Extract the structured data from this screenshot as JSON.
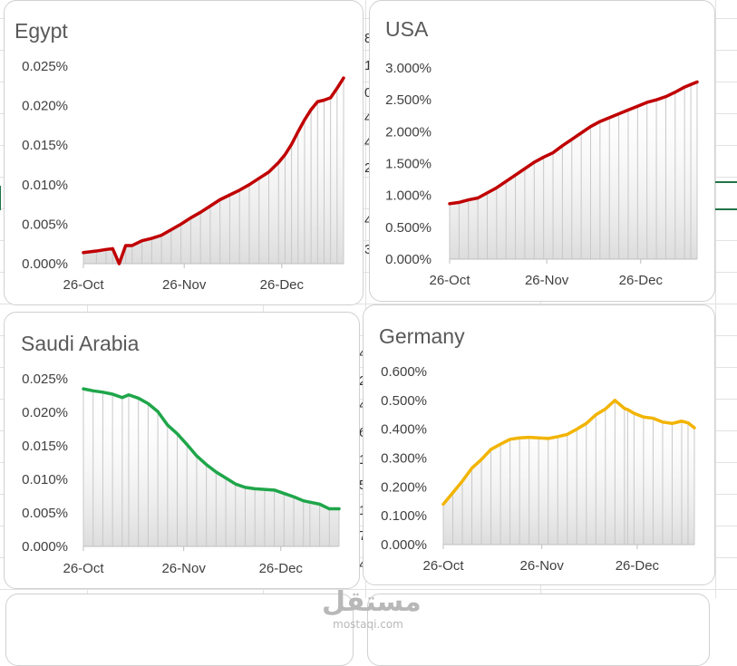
{
  "background": {
    "fragments": [
      "8",
      "1",
      "0",
      "4",
      "4",
      "2",
      "4",
      "3",
      "4",
      "2",
      "4",
      "6",
      "1",
      "5",
      "1",
      "7",
      "4"
    ]
  },
  "watermark": {
    "arabic": "مستقل",
    "latin": "mostaqi.com"
  },
  "chart_data": [
    {
      "type": "area",
      "title": "Egypt",
      "color": "#c00000",
      "x_ticks": [
        "26-Oct",
        "26-Nov",
        "26-Dec"
      ],
      "x_tick_days": [
        0,
        31,
        61
      ],
      "x_range": [
        0,
        80
      ],
      "y_ticks": [
        "0.000%",
        "0.005%",
        "0.010%",
        "0.015%",
        "0.020%",
        "0.025%"
      ],
      "ylim": [
        0,
        0.025
      ],
      "y_unit": "%",
      "series": [
        {
          "x": [
            0,
            4,
            7,
            9,
            11,
            13,
            15,
            18,
            21,
            24,
            27,
            30,
            33,
            36,
            39,
            42,
            45,
            48,
            51,
            54,
            57,
            60,
            62,
            64,
            66,
            68,
            70,
            72,
            74,
            76,
            78,
            80
          ],
          "values": [
            0.0014,
            0.0016,
            0.0018,
            0.0019,
            0.0,
            0.0023,
            0.0023,
            0.0029,
            0.0032,
            0.0036,
            0.0043,
            0.005,
            0.0058,
            0.0065,
            0.0073,
            0.0081,
            0.0087,
            0.0093,
            0.01,
            0.0108,
            0.0116,
            0.0128,
            0.0138,
            0.0151,
            0.0167,
            0.0182,
            0.0195,
            0.0205,
            0.0207,
            0.021,
            0.0222,
            0.0235
          ]
        }
      ]
    },
    {
      "type": "area",
      "title": "USA",
      "color": "#c00000",
      "x_ticks": [
        "26-Oct",
        "26-Nov",
        "26-Dec"
      ],
      "x_tick_days": [
        0,
        31,
        61
      ],
      "x_range": [
        0,
        79
      ],
      "y_ticks": [
        "0.000%",
        "0.500%",
        "1.000%",
        "1.500%",
        "2.000%",
        "2.500%",
        "3.000%"
      ],
      "ylim": [
        0,
        3
      ],
      "y_unit": "%",
      "series": [
        {
          "x": [
            0,
            3,
            6,
            9,
            12,
            15,
            18,
            21,
            24,
            27,
            30,
            33,
            36,
            39,
            42,
            45,
            48,
            51,
            54,
            57,
            60,
            63,
            66,
            69,
            72,
            75,
            77,
            79
          ],
          "values": [
            0.87,
            0.89,
            0.93,
            0.96,
            1.04,
            1.12,
            1.22,
            1.32,
            1.42,
            1.52,
            1.6,
            1.67,
            1.78,
            1.88,
            1.98,
            2.08,
            2.16,
            2.22,
            2.28,
            2.34,
            2.4,
            2.46,
            2.5,
            2.55,
            2.62,
            2.7,
            2.74,
            2.78
          ]
        }
      ]
    },
    {
      "type": "area",
      "title": "Saudi Arabia",
      "color": "#1fa64a",
      "x_ticks": [
        "26-Oct",
        "26-Nov",
        "26-Dec"
      ],
      "x_tick_days": [
        0,
        31,
        61
      ],
      "x_range": [
        0,
        79
      ],
      "y_ticks": [
        "0.000%",
        "0.005%",
        "0.010%",
        "0.015%",
        "0.020%",
        "0.025%"
      ],
      "ylim": [
        0,
        0.025
      ],
      "y_unit": "%",
      "series": [
        {
          "x": [
            0,
            3,
            6,
            9,
            12,
            14,
            17,
            20,
            23,
            26,
            29,
            32,
            35,
            38,
            41,
            44,
            47,
            50,
            53,
            56,
            59,
            62,
            65,
            68,
            70,
            73,
            76,
            79
          ],
          "values": [
            0.0235,
            0.0232,
            0.023,
            0.0227,
            0.0222,
            0.0226,
            0.0221,
            0.0213,
            0.0201,
            0.0181,
            0.0168,
            0.0152,
            0.0135,
            0.0122,
            0.0111,
            0.0102,
            0.0093,
            0.0088,
            0.0086,
            0.0085,
            0.0084,
            0.0079,
            0.0074,
            0.0068,
            0.0066,
            0.0063,
            0.0056,
            0.0056
          ]
        }
      ]
    },
    {
      "type": "area",
      "title": "Germany",
      "color": "#f2b400",
      "x_ticks": [
        "26-Oct",
        "26-Nov",
        "26-Dec"
      ],
      "x_tick_days": [
        0,
        31,
        61
      ],
      "x_range": [
        0,
        79
      ],
      "y_ticks": [
        "0.000%",
        "0.100%",
        "0.200%",
        "0.300%",
        "0.400%",
        "0.500%",
        "0.600%"
      ],
      "ylim": [
        0,
        0.6
      ],
      "y_unit": "%",
      "series": [
        {
          "x": [
            0,
            3,
            6,
            9,
            12,
            15,
            18,
            21,
            24,
            27,
            30,
            33,
            36,
            39,
            42,
            45,
            48,
            51,
            54,
            57,
            58,
            60,
            63,
            66,
            69,
            72,
            75,
            77,
            79
          ],
          "values": [
            0.14,
            0.18,
            0.22,
            0.265,
            0.295,
            0.33,
            0.348,
            0.365,
            0.37,
            0.372,
            0.37,
            0.368,
            0.374,
            0.382,
            0.4,
            0.42,
            0.45,
            0.47,
            0.5,
            0.472,
            0.468,
            0.455,
            0.442,
            0.438,
            0.425,
            0.42,
            0.428,
            0.422,
            0.405
          ]
        }
      ]
    }
  ]
}
